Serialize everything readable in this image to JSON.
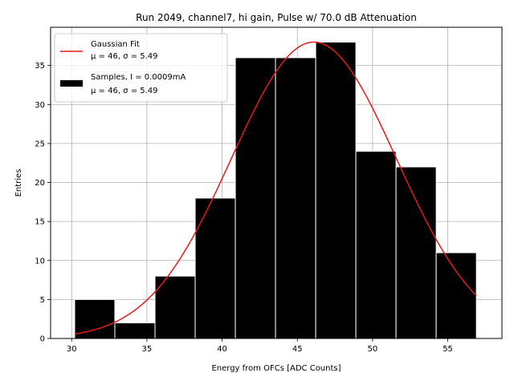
{
  "chart_data": {
    "type": "bar",
    "title": "Run 2049, channel7, hi gain, Pulse w/ 70.0 dB Attenuation",
    "xlabel": "Energy from OFCs [ADC Counts]",
    "ylabel": "Entries",
    "xlim": [
      28.6,
      58.6
    ],
    "ylim": [
      0,
      39.9
    ],
    "xticks": [
      30,
      35,
      40,
      45,
      50,
      55
    ],
    "yticks": [
      0,
      5,
      10,
      15,
      20,
      25,
      30,
      35
    ],
    "grid": true,
    "legend_position": "upper-left",
    "histogram": {
      "name": "Samples, I = 0.0009mA",
      "stats": "μ = 46, σ = 5.49",
      "color": "#000000",
      "edge_color": "#ffffff",
      "bin_edges": [
        30.2,
        32.87,
        35.54,
        38.21,
        40.88,
        43.55,
        46.22,
        48.89,
        51.56,
        54.23,
        56.9
      ],
      "counts": [
        5,
        2,
        8,
        18,
        36,
        36,
        38,
        24,
        22,
        11
      ]
    },
    "fit": {
      "name": "Gaussian Fit",
      "stats": "μ = 46, σ = 5.49",
      "color": "#e31a1c",
      "mu": 46.1,
      "sigma": 5.49,
      "amplitude": 38.0,
      "x_range": [
        30.2,
        56.9
      ]
    }
  }
}
